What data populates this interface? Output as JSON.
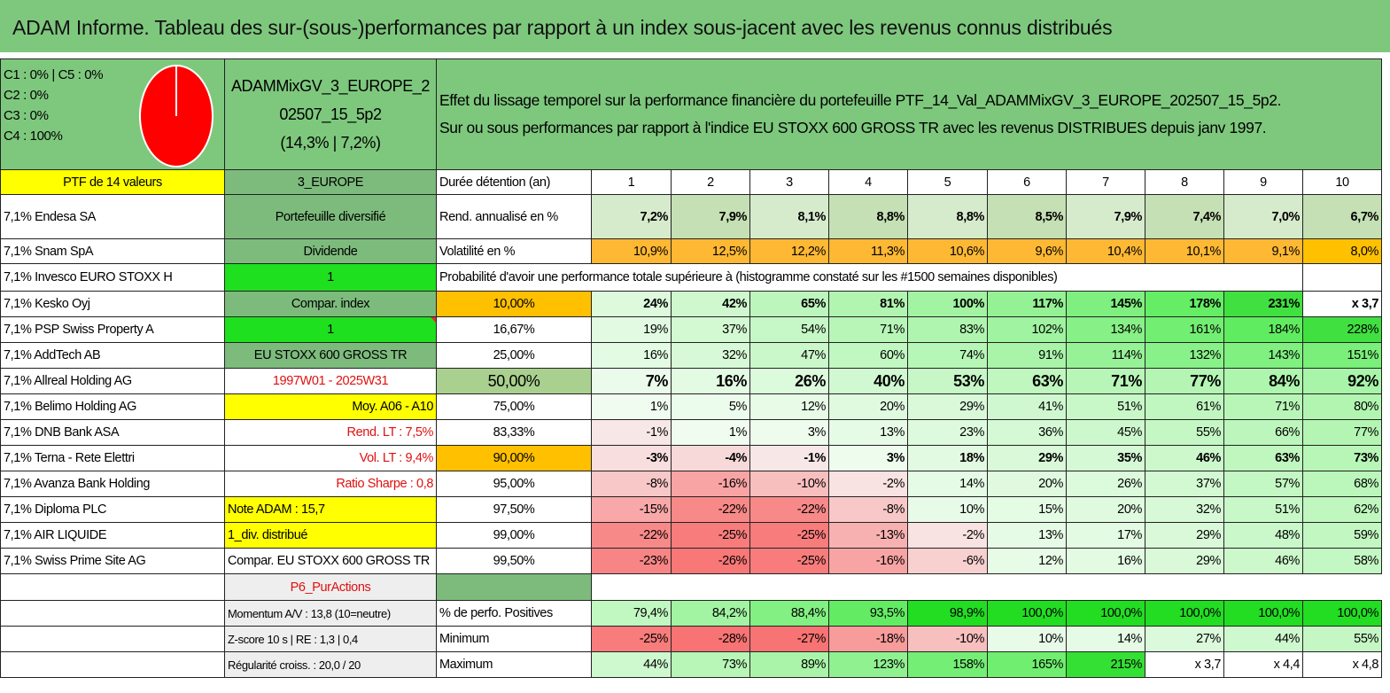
{
  "title": "ADAM Informe. Tableau des sur-(sous-)performances par rapport à un index sous-jacent avec les revenus connus distribués",
  "legend": {
    "lines": [
      "C1 : 0% | C5 : 0%",
      "C2 : 0%",
      "C3 : 0%",
      "C4 : 100%"
    ],
    "pie_color": "#ff0000"
  },
  "portfolio": {
    "name": "ADAMMixGV_3_EUROPE_202507_15_5p2",
    "name_line1": "ADAMMixGV_3_EUROPE_2",
    "name_line2": "02507_15_5p2",
    "name_line3": "(14,3% | 7,2%)"
  },
  "description": {
    "line1": "Effet du lissage temporel sur la performance financière du portefeuille PTF_14_Val_ADAMMixGV_3_EUROPE_202507_15_5p2.",
    "line2": "Sur ou sous performances par rapport à l'indice EU STOXX 600 GROSS TR avec les revenus DISTRIBUES depuis janv 1997."
  },
  "holdings_header": "PTF de 14 valeurs",
  "holdings": [
    "7,1% Endesa SA",
    "7,1% Snam SpA",
    "7,1% Invesco EURO STOXX H",
    "7,1% Kesko Oyj",
    "7,1% PSP Swiss Property A",
    "7,1% AddTech AB",
    "7,1% Allreal Holding AG",
    "7,1% Belimo Holding AG",
    "7,1% DNB Bank ASA",
    "7,1% Terna - Rete Elettri",
    "7,1% Avanza Bank Holding",
    "7,1% Diploma PLC",
    "7,1% AIR LIQUIDE",
    "7,1% Swiss Prime Site AG"
  ],
  "info": {
    "region": "3_EUROPE",
    "type": "Portefeuille diversifié",
    "dividend": "Dividende",
    "value1": "1",
    "compar_index": "Compar. index",
    "value2": "1",
    "index_name": "EU STOXX 600 GROSS TR",
    "period": "1997W01 - 2025W31",
    "moy": "Moy. A06 - A10",
    "rend_lt": "Rend. LT : 7,5%",
    "vol_lt": "Vol. LT : 9,4%",
    "sharpe": "Ratio Sharpe : 0,8",
    "note": "Note ADAM : 15,7",
    "div": "1_div. distribué",
    "compar": "Compar. EU STOXX 600 GROSS TR",
    "pur_actions": "P6_PurActions",
    "momentum": "Momentum A/V : 13,8 (10=neutre)",
    "zscore": "Z-score 10 s | RE : 1,3 | 0,4",
    "regularite": "Régularité croiss. : 20,0 / 20"
  },
  "table": {
    "duration_label": "Durée détention (an)",
    "years": [
      "1",
      "2",
      "3",
      "4",
      "5",
      "6",
      "7",
      "8",
      "9",
      "10"
    ],
    "rend_label": "Rend. annualisé en %",
    "rend": [
      "7,2%",
      "7,9%",
      "8,1%",
      "8,8%",
      "8,8%",
      "8,5%",
      "7,9%",
      "7,4%",
      "7,0%",
      "6,7%"
    ],
    "vol_label": "Volatilité en %",
    "vol": [
      "10,9%",
      "12,5%",
      "12,2%",
      "11,3%",
      "10,6%",
      "9,6%",
      "10,4%",
      "10,1%",
      "9,1%",
      "8,0%"
    ],
    "prob_label": "Probabilité d'avoir une performance totale supérieure à (histogramme constaté sur les #1500 semaines disponibles)",
    "prob_rows": [
      {
        "p": "10,00%",
        "v": [
          "24%",
          "42%",
          "65%",
          "81%",
          "100%",
          "117%",
          "145%",
          "178%",
          "231%",
          "x 3,7"
        ]
      },
      {
        "p": "16,67%",
        "v": [
          "19%",
          "37%",
          "54%",
          "71%",
          "83%",
          "102%",
          "134%",
          "161%",
          "184%",
          "228%"
        ]
      },
      {
        "p": "25,00%",
        "v": [
          "16%",
          "32%",
          "47%",
          "60%",
          "74%",
          "91%",
          "114%",
          "132%",
          "143%",
          "151%"
        ]
      },
      {
        "p": "50,00%",
        "v": [
          "7%",
          "16%",
          "26%",
          "40%",
          "53%",
          "63%",
          "71%",
          "77%",
          "84%",
          "92%"
        ]
      },
      {
        "p": "75,00%",
        "v": [
          "1%",
          "5%",
          "12%",
          "20%",
          "29%",
          "41%",
          "51%",
          "61%",
          "71%",
          "80%"
        ]
      },
      {
        "p": "83,33%",
        "v": [
          "-1%",
          "1%",
          "3%",
          "13%",
          "23%",
          "36%",
          "45%",
          "55%",
          "66%",
          "77%"
        ]
      },
      {
        "p": "90,00%",
        "v": [
          "-3%",
          "-4%",
          "-1%",
          "3%",
          "18%",
          "29%",
          "35%",
          "46%",
          "63%",
          "73%"
        ]
      },
      {
        "p": "95,00%",
        "v": [
          "-8%",
          "-16%",
          "-10%",
          "-2%",
          "14%",
          "20%",
          "26%",
          "37%",
          "57%",
          "68%"
        ]
      },
      {
        "p": "97,50%",
        "v": [
          "-15%",
          "-22%",
          "-22%",
          "-8%",
          "10%",
          "15%",
          "20%",
          "32%",
          "51%",
          "62%"
        ]
      },
      {
        "p": "99,00%",
        "v": [
          "-22%",
          "-25%",
          "-25%",
          "-13%",
          "-2%",
          "13%",
          "17%",
          "29%",
          "48%",
          "59%"
        ]
      },
      {
        "p": "99,50%",
        "v": [
          "-23%",
          "-26%",
          "-25%",
          "-16%",
          "-6%",
          "12%",
          "16%",
          "29%",
          "46%",
          "58%"
        ]
      }
    ],
    "pos_label": "% de perfo. Positives",
    "pos": [
      "79,4%",
      "84,2%",
      "88,4%",
      "93,5%",
      "98,9%",
      "100,0%",
      "100,0%",
      "100,0%",
      "100,0%",
      "100,0%"
    ],
    "min_label": "Minimum",
    "min": [
      "-25%",
      "-28%",
      "-27%",
      "-18%",
      "-10%",
      "10%",
      "14%",
      "27%",
      "44%",
      "55%"
    ],
    "max_label": "Maximum",
    "max": [
      "44%",
      "73%",
      "89%",
      "123%",
      "158%",
      "165%",
      "215%",
      "x 3,7",
      "x 4,4",
      "x 4,8"
    ]
  },
  "colors": {
    "header_green": "#7ec87e",
    "bright_green": "#1fe01f",
    "yellow": "#ffff00",
    "orange": "#ffc000",
    "red_text": "#e01010"
  }
}
